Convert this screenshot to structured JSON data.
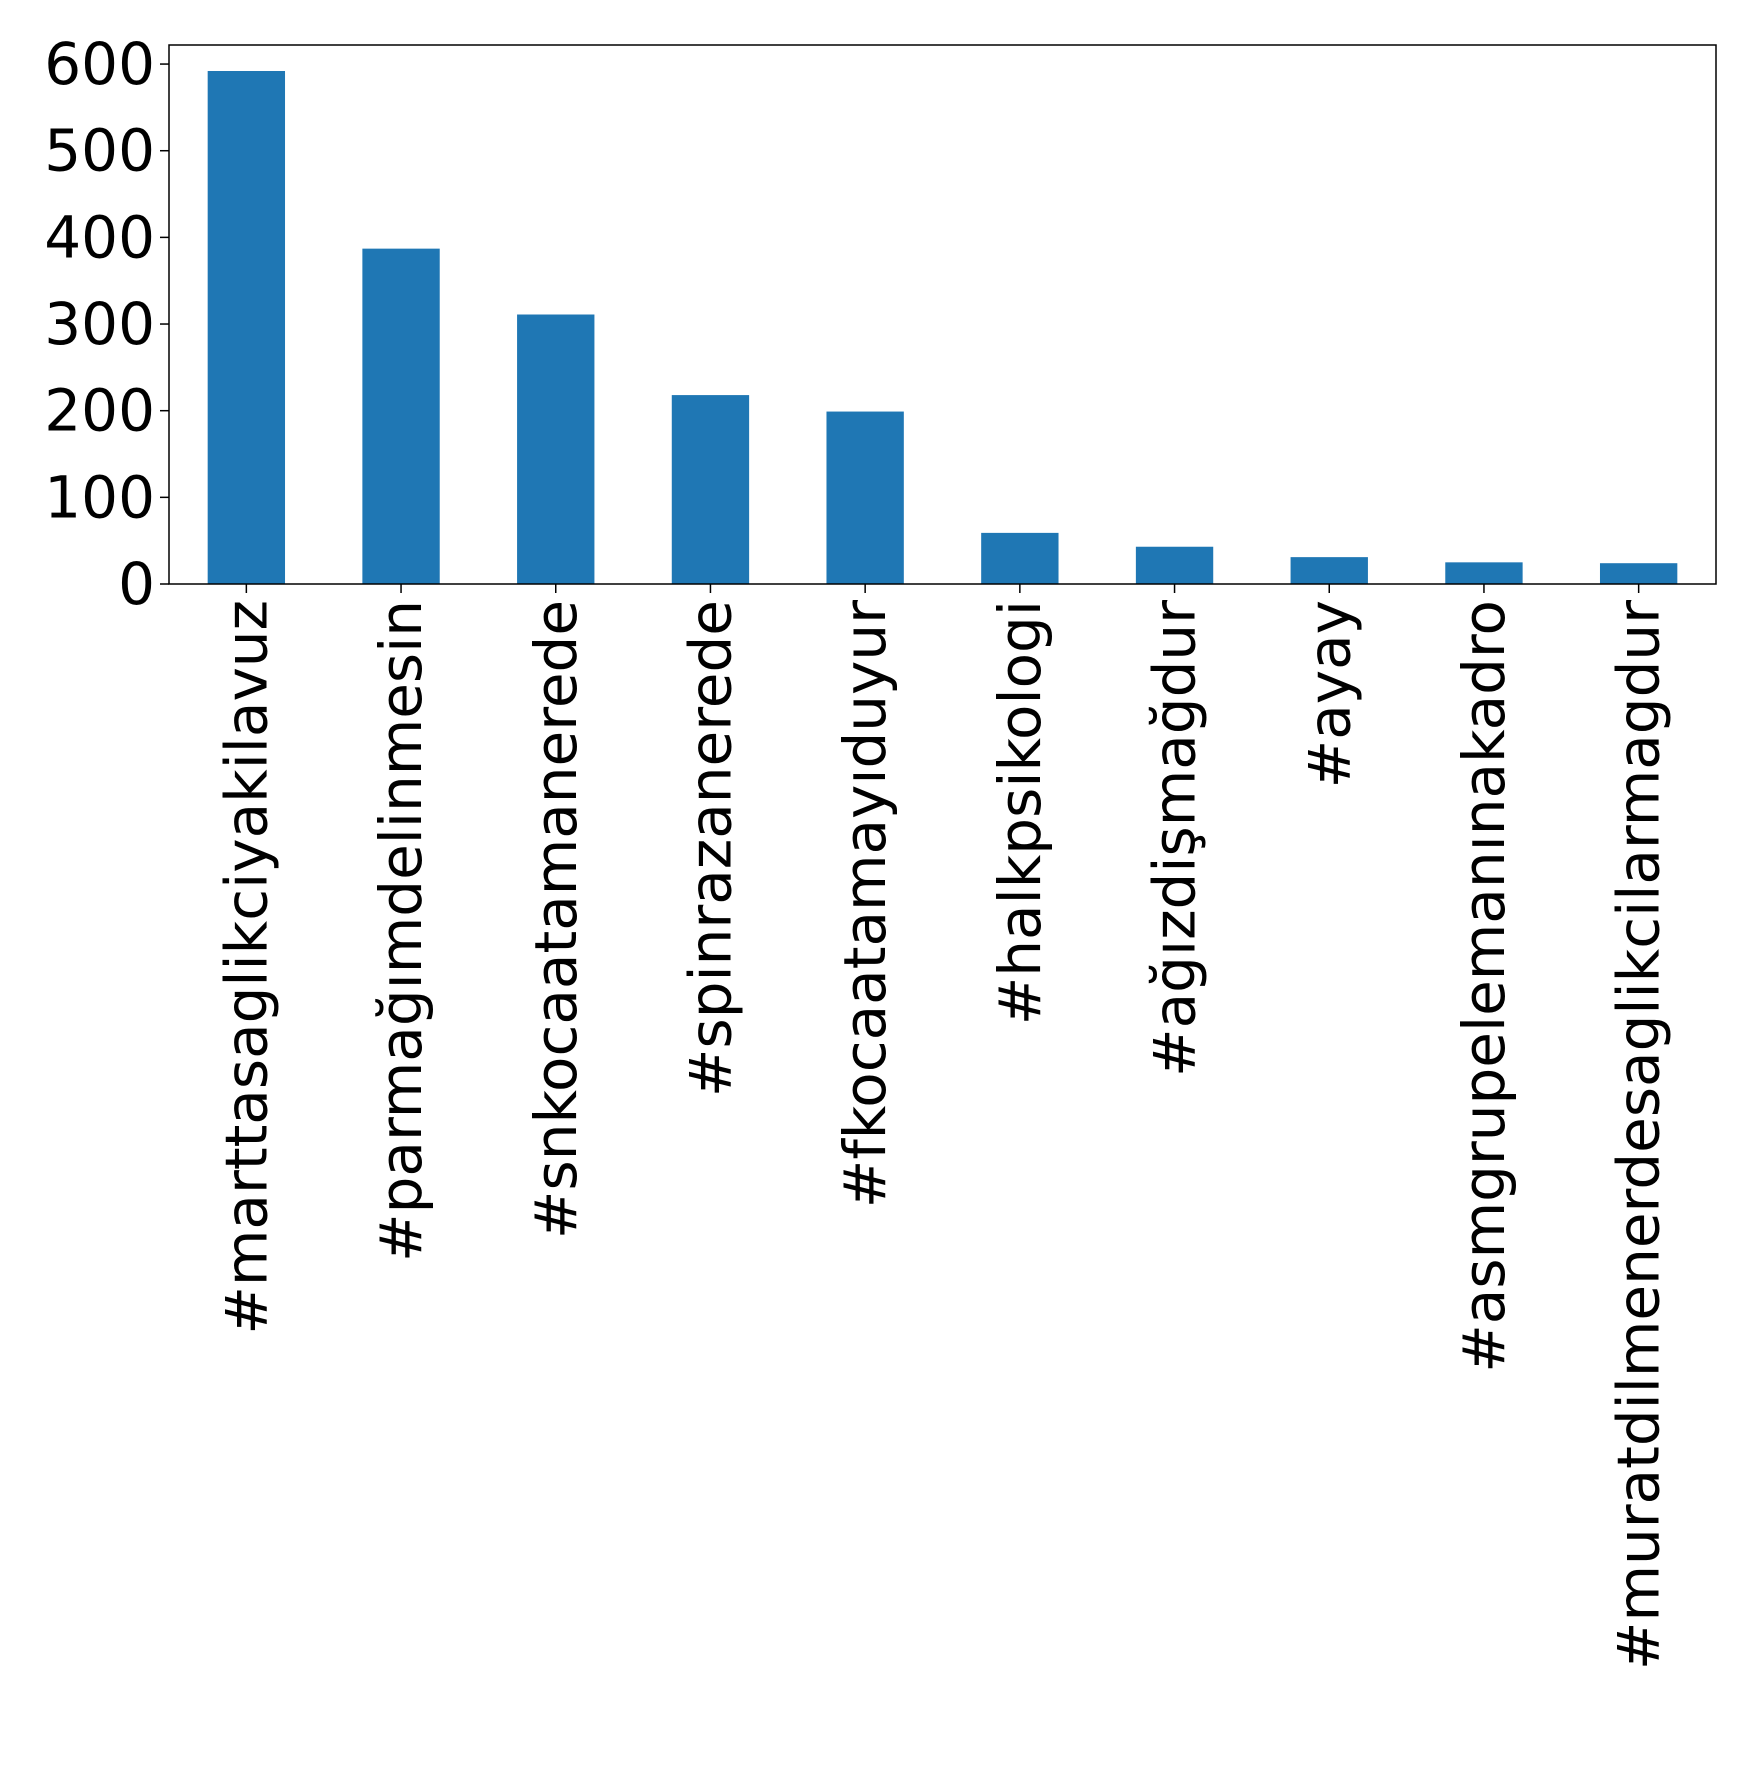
{
  "chart_data": {
    "type": "bar",
    "title": "",
    "xlabel": "",
    "ylabel": "",
    "categories": [
      "#marttasaglikciyakilavuz",
      "#parmağımdelinmesin",
      "#snkocaatamanerede",
      "#spinrazanerede",
      "#fkocaatamayıduyur",
      "#halkpsikologi",
      "#ağızdişmağdur",
      "#ayay",
      "#asmgrupelemanınakadro",
      "#muratdilmenerdesaglikcilarmagdur"
    ],
    "values": [
      592,
      387,
      311,
      218,
      199,
      59,
      43,
      31,
      25,
      24
    ],
    "ylim": [
      0,
      622
    ],
    "yticks": [
      0,
      100,
      200,
      300,
      400,
      500,
      600
    ],
    "grid": false,
    "legend": "none",
    "bar_color": "#1f77b4"
  }
}
